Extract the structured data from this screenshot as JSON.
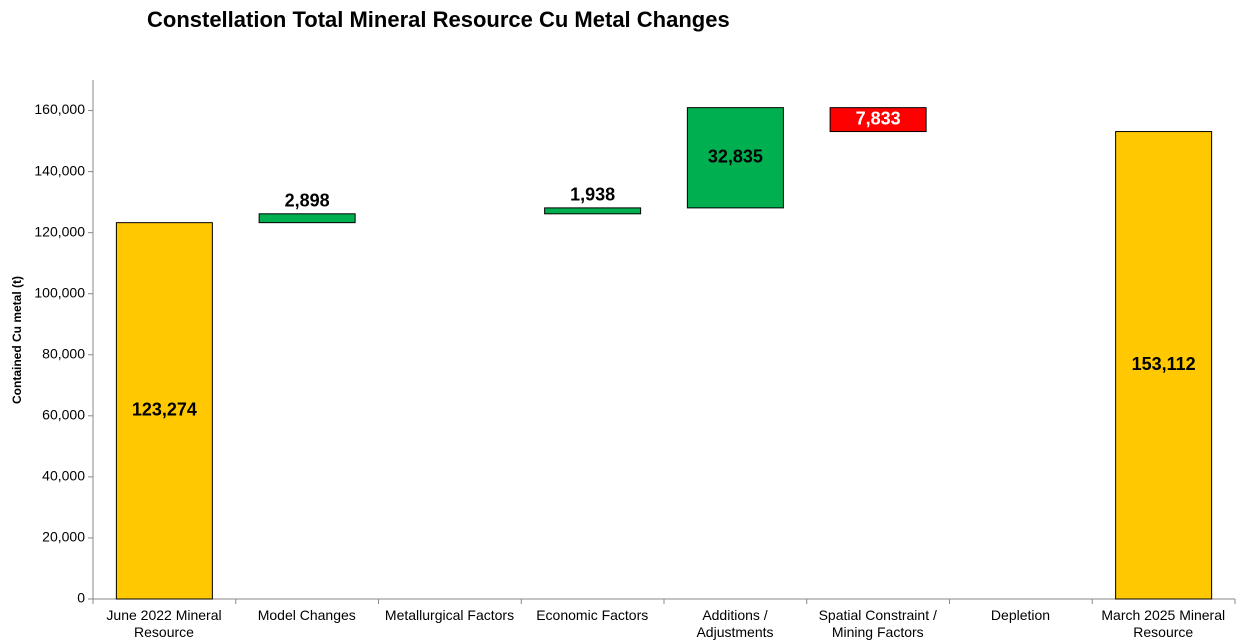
{
  "chart_data": {
    "type": "waterfall",
    "title": "Constellation Total Mineral Resource Cu Metal Changes",
    "y_label": "Contained Cu metal (t)",
    "categories": [
      "June 2022 Mineral Resource",
      "Model Changes",
      "Metallurgical Factors",
      "Economic Factors",
      "Additions / Adjustments",
      "Spatial Constraint / Mining Factors",
      "Depletion",
      "March 2025 Mineral Resource"
    ],
    "values": [
      123274,
      2898,
      null,
      1938,
      32835,
      -7833,
      null,
      153112
    ],
    "value_labels": [
      "123,274",
      "2,898",
      null,
      "1,938",
      "32,835",
      "7,833",
      null,
      "153,112"
    ],
    "totals": [
      true,
      false,
      false,
      false,
      false,
      false,
      false,
      true
    ],
    "colors": {
      "total": "#ffc800",
      "increase": "#00b050",
      "decrease": "#ff0000"
    },
    "ylim": [
      0,
      170000
    ],
    "yticks": [
      0,
      {
        "value": 20000,
        "label": "20,000"
      },
      {
        "value": 40000,
        "label": "40,000"
      },
      {
        "value": 60000,
        "label": "60,000"
      },
      {
        "value": 80000,
        "label": "80,000"
      },
      {
        "value": 100000,
        "label": "100,000"
      },
      {
        "value": 120000,
        "label": "120,000"
      },
      {
        "value": 140000,
        "label": "140,000"
      },
      {
        "value": 160000,
        "label": "160,000"
      }
    ],
    "grid": false
  }
}
